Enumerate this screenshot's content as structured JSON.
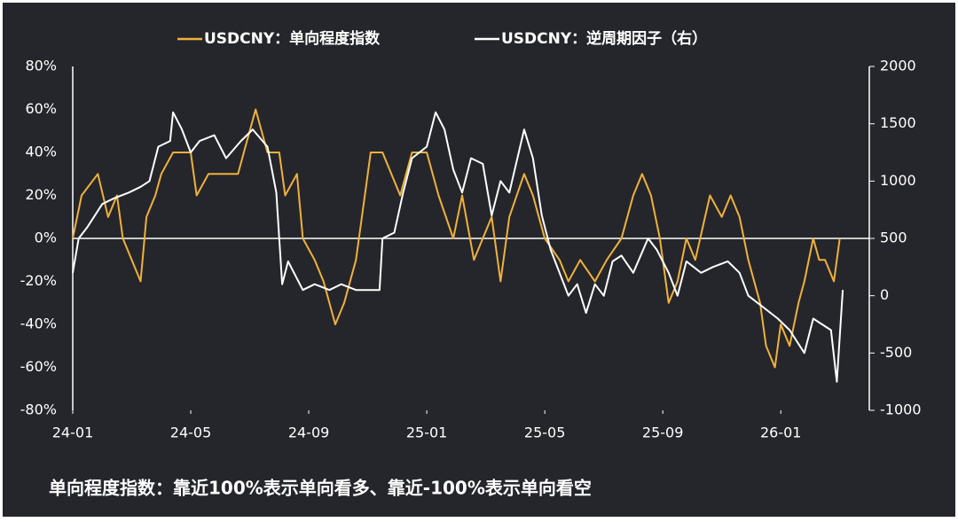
{
  "chart_data": {
    "type": "line",
    "note": "单向程度指数：靠近100%表示单向看多、靠近-100%表示单向看空",
    "xlim": [
      0,
      27
    ],
    "xticks": [
      {
        "value": 0,
        "label": "24-01"
      },
      {
        "value": 4,
        "label": "24-05"
      },
      {
        "value": 8,
        "label": "24-09"
      },
      {
        "value": 12,
        "label": "25-01"
      },
      {
        "value": 16,
        "label": "25-05"
      },
      {
        "value": 20,
        "label": "25-09"
      },
      {
        "value": 24,
        "label": "26-01"
      }
    ],
    "ylim": [
      -80,
      80
    ],
    "yticks": [
      {
        "value": -80,
        "label": "-80%"
      },
      {
        "value": -60,
        "label": "-60%"
      },
      {
        "value": -40,
        "label": "-40%"
      },
      {
        "value": -20,
        "label": "-20%"
      },
      {
        "value": 0,
        "label": "0%"
      },
      {
        "value": 20,
        "label": "20%"
      },
      {
        "value": 40,
        "label": "40%"
      },
      {
        "value": 60,
        "label": "60%"
      },
      {
        "value": 80,
        "label": "80%"
      }
    ],
    "y2lim": [
      -1000,
      2000
    ],
    "y2ticks": [
      -1000,
      -500,
      0,
      500,
      1000,
      1500,
      2000
    ],
    "series": [
      {
        "name": "USDCNY：单向程度指数",
        "color": "#f0b13a",
        "x": [
          0,
          0.3,
          0.85,
          1.2,
          1.5,
          1.7,
          2.0,
          2.3,
          2.5,
          2.8,
          3.0,
          3.4,
          4.0,
          4.2,
          4.6,
          4.8,
          5.6,
          5.8,
          6.2,
          6.6,
          7.0,
          7.2,
          7.6,
          7.8,
          8.2,
          8.5,
          8.9,
          9.2,
          9.6,
          9.9,
          10.1,
          10.5,
          10.8,
          11.1,
          11.5,
          12.0,
          12.4,
          12.9,
          13.2,
          13.6,
          13.9,
          14.2,
          14.5,
          14.8,
          15.3,
          15.6,
          16.0,
          16.5,
          16.8,
          17.2,
          17.7,
          18.1,
          18.6,
          19.0,
          19.3,
          19.6,
          19.9,
          20.2,
          20.5,
          20.8,
          21.1,
          21.6,
          22.0,
          22.3,
          22.6,
          22.9,
          23.3,
          23.5,
          23.8,
          24.0,
          24.3,
          24.6,
          24.8,
          25.1,
          25.3,
          25.5,
          25.8,
          26.0
        ],
        "values": [
          0,
          20,
          30,
          10,
          20,
          0,
          -10,
          -20,
          10,
          20,
          30,
          40,
          40,
          20,
          30,
          30,
          30,
          40,
          60,
          40,
          40,
          20,
          30,
          0,
          -10,
          -20,
          -40,
          -30,
          -10,
          20,
          40,
          40,
          30,
          20,
          40,
          40,
          20,
          0,
          20,
          -10,
          0,
          10,
          -20,
          10,
          30,
          20,
          0,
          -10,
          -20,
          -10,
          -20,
          -10,
          0,
          20,
          30,
          20,
          0,
          -30,
          -20,
          0,
          -10,
          20,
          10,
          20,
          10,
          -10,
          -30,
          -50,
          -60,
          -40,
          -50,
          -30,
          -20,
          0,
          -10,
          -10,
          -20,
          0
        ]
      },
      {
        "name": "USDCNY：逆周期因子（右）",
        "color": "#ffffff",
        "axis": "y2",
        "x": [
          0,
          0.2,
          0.5,
          1.0,
          1.4,
          1.9,
          2.3,
          2.6,
          2.9,
          3.3,
          3.4,
          3.7,
          4.0,
          4.3,
          4.8,
          5.2,
          5.7,
          6.1,
          6.6,
          6.9,
          7.1,
          7.3,
          7.8,
          8.2,
          8.7,
          9.1,
          9.6,
          10.0,
          10.4,
          10.5,
          10.9,
          11.2,
          11.5,
          12.0,
          12.3,
          12.6,
          12.9,
          13.2,
          13.5,
          13.9,
          14.2,
          14.5,
          14.8,
          15.3,
          15.6,
          15.9,
          16.2,
          16.5,
          16.8,
          17.1,
          17.4,
          17.7,
          18.0,
          18.3,
          18.6,
          19.0,
          19.5,
          19.8,
          20.2,
          20.5,
          20.8,
          21.3,
          21.7,
          22.2,
          22.6,
          22.9,
          23.4,
          23.9,
          24.3,
          24.8,
          25.1,
          25.4,
          25.7,
          25.9,
          26.1
        ],
        "values": [
          200,
          500,
          600,
          800,
          850,
          900,
          950,
          1000,
          1300,
          1350,
          1600,
          1450,
          1250,
          1350,
          1400,
          1200,
          1350,
          1450,
          1300,
          900,
          100,
          300,
          50,
          100,
          50,
          100,
          50,
          50,
          50,
          500,
          550,
          900,
          1200,
          1300,
          1600,
          1450,
          1100,
          900,
          1200,
          1150,
          700,
          1000,
          900,
          1450,
          1200,
          700,
          400,
          200,
          0,
          100,
          -150,
          100,
          0,
          300,
          350,
          200,
          500,
          400,
          200,
          0,
          300,
          200,
          250,
          300,
          200,
          0,
          -100,
          -200,
          -300,
          -500,
          -200,
          -250,
          -300,
          -750,
          50
        ]
      }
    ]
  }
}
